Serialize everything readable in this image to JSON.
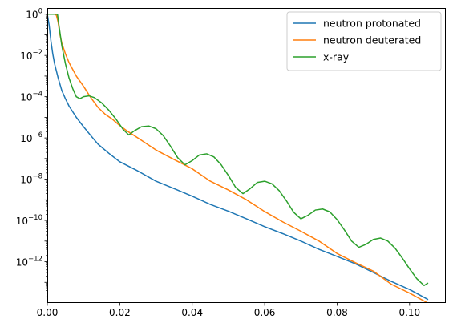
{
  "chart_data": {
    "type": "line",
    "title": "",
    "xlabel": "",
    "ylabel": "",
    "xlim": [
      0,
      0.11
    ],
    "ylim_log10": [
      -14,
      0.3
    ],
    "y_scale": "log",
    "grid": false,
    "legend_position": "top-right",
    "x_ticks": [
      "0.00",
      "0.02",
      "0.04",
      "0.06",
      "0.08",
      "0.10"
    ],
    "y_ticks": [
      {
        "base": "10",
        "exp": "0"
      },
      {
        "base": "10",
        "exp": "−2"
      },
      {
        "base": "10",
        "exp": "−4"
      },
      {
        "base": "10",
        "exp": "−6"
      },
      {
        "base": "10",
        "exp": "−8"
      },
      {
        "base": "10",
        "exp": "−10"
      },
      {
        "base": "10",
        "exp": "−12"
      }
    ],
    "series": [
      {
        "name": "neutron protonated",
        "color": "#1f77b4",
        "points": [
          [
            0.0,
            1.0
          ],
          [
            0.0005,
            0.3
          ],
          [
            0.001,
            0.05
          ],
          [
            0.0015,
            0.012
          ],
          [
            0.002,
            0.004
          ],
          [
            0.003,
            0.0008
          ],
          [
            0.004,
            0.0002
          ],
          [
            0.005,
            8e-05
          ],
          [
            0.006,
            3.5e-05
          ],
          [
            0.008,
            1e-05
          ],
          [
            0.01,
            3.5e-06
          ],
          [
            0.012,
            1.3e-06
          ],
          [
            0.014,
            5e-07
          ],
          [
            0.017,
            1.8e-07
          ],
          [
            0.02,
            7e-08
          ],
          [
            0.025,
            2.5e-08
          ],
          [
            0.03,
            8e-09
          ],
          [
            0.035,
            3.5e-09
          ],
          [
            0.04,
            1.5e-09
          ],
          [
            0.045,
            6e-10
          ],
          [
            0.05,
            2.8e-10
          ],
          [
            0.055,
            1.2e-10
          ],
          [
            0.06,
            5e-11
          ],
          [
            0.065,
            2.3e-11
          ],
          [
            0.07,
            1e-11
          ],
          [
            0.075,
            4e-12
          ],
          [
            0.08,
            1.8e-12
          ],
          [
            0.085,
            8e-13
          ],
          [
            0.09,
            3e-13
          ],
          [
            0.095,
            1.1e-13
          ],
          [
            0.1,
            4.5e-14
          ],
          [
            0.105,
            1.5e-14
          ]
        ]
      },
      {
        "name": "neutron deuterated",
        "color": "#ff7f0e",
        "points": [
          [
            0.0,
            1.0
          ],
          [
            0.002,
            1.0
          ],
          [
            0.0025,
            0.9
          ],
          [
            0.003,
            0.4
          ],
          [
            0.0035,
            0.1
          ],
          [
            0.004,
            0.04
          ],
          [
            0.005,
            0.012
          ],
          [
            0.006,
            0.0045
          ],
          [
            0.008,
            0.001
          ],
          [
            0.01,
            0.00032
          ],
          [
            0.012,
            9e-05
          ],
          [
            0.014,
            3e-05
          ],
          [
            0.016,
            1.4e-05
          ],
          [
            0.018,
            8e-06
          ],
          [
            0.02,
            4e-06
          ],
          [
            0.022,
            2.2e-06
          ],
          [
            0.025,
            1e-06
          ],
          [
            0.03,
            2.6e-07
          ],
          [
            0.035,
            9e-08
          ],
          [
            0.04,
            3.2e-08
          ],
          [
            0.045,
            8e-09
          ],
          [
            0.05,
            3e-09
          ],
          [
            0.055,
            1e-09
          ],
          [
            0.06,
            2.7e-10
          ],
          [
            0.065,
            8.5e-11
          ],
          [
            0.07,
            3e-11
          ],
          [
            0.075,
            1e-11
          ],
          [
            0.08,
            2.5e-12
          ],
          [
            0.085,
            9e-13
          ],
          [
            0.09,
            3.5e-13
          ],
          [
            0.095,
            8e-14
          ],
          [
            0.1,
            3e-14
          ],
          [
            0.105,
            1e-14
          ]
        ]
      },
      {
        "name": "x-ray",
        "color": "#2ca02c",
        "points": [
          [
            0.0,
            1.0
          ],
          [
            0.0028,
            1.0
          ],
          [
            0.0032,
            0.3
          ],
          [
            0.004,
            0.03
          ],
          [
            0.005,
            0.004
          ],
          [
            0.006,
            0.0008
          ],
          [
            0.007,
            0.00025
          ],
          [
            0.008,
            0.0001
          ],
          [
            0.009,
            8e-05
          ],
          [
            0.01,
            0.0001
          ],
          [
            0.0115,
            0.00011
          ],
          [
            0.013,
            9e-05
          ],
          [
            0.015,
            5e-05
          ],
          [
            0.017,
            2.2e-05
          ],
          [
            0.019,
            8e-06
          ],
          [
            0.021,
            2.5e-06
          ],
          [
            0.0225,
            1.4e-06
          ],
          [
            0.024,
            2.2e-06
          ],
          [
            0.026,
            3.5e-06
          ],
          [
            0.028,
            3.8e-06
          ],
          [
            0.03,
            2.8e-06
          ],
          [
            0.032,
            1.3e-06
          ],
          [
            0.034,
            4e-07
          ],
          [
            0.036,
            1.1e-07
          ],
          [
            0.038,
            5e-08
          ],
          [
            0.04,
            8e-08
          ],
          [
            0.042,
            1.5e-07
          ],
          [
            0.044,
            1.7e-07
          ],
          [
            0.046,
            1.2e-07
          ],
          [
            0.048,
            5e-08
          ],
          [
            0.05,
            1.5e-08
          ],
          [
            0.052,
            4e-09
          ],
          [
            0.054,
            2e-09
          ],
          [
            0.056,
            3.5e-09
          ],
          [
            0.058,
            7e-09
          ],
          [
            0.06,
            8e-09
          ],
          [
            0.062,
            6e-09
          ],
          [
            0.064,
            2.8e-09
          ],
          [
            0.066,
            9e-10
          ],
          [
            0.068,
            2.5e-10
          ],
          [
            0.07,
            1.2e-10
          ],
          [
            0.072,
            1.8e-10
          ],
          [
            0.074,
            3.2e-10
          ],
          [
            0.076,
            3.6e-10
          ],
          [
            0.078,
            2.6e-10
          ],
          [
            0.08,
            1.1e-10
          ],
          [
            0.082,
            3.5e-11
          ],
          [
            0.084,
            1e-11
          ],
          [
            0.086,
            5e-12
          ],
          [
            0.088,
            7e-12
          ],
          [
            0.09,
            1.2e-11
          ],
          [
            0.092,
            1.4e-11
          ],
          [
            0.094,
            1e-11
          ],
          [
            0.096,
            4.5e-12
          ],
          [
            0.098,
            1.5e-12
          ],
          [
            0.1,
            4.5e-13
          ],
          [
            0.102,
            1.5e-13
          ],
          [
            0.104,
            7e-14
          ],
          [
            0.105,
            9e-14
          ]
        ]
      }
    ]
  }
}
